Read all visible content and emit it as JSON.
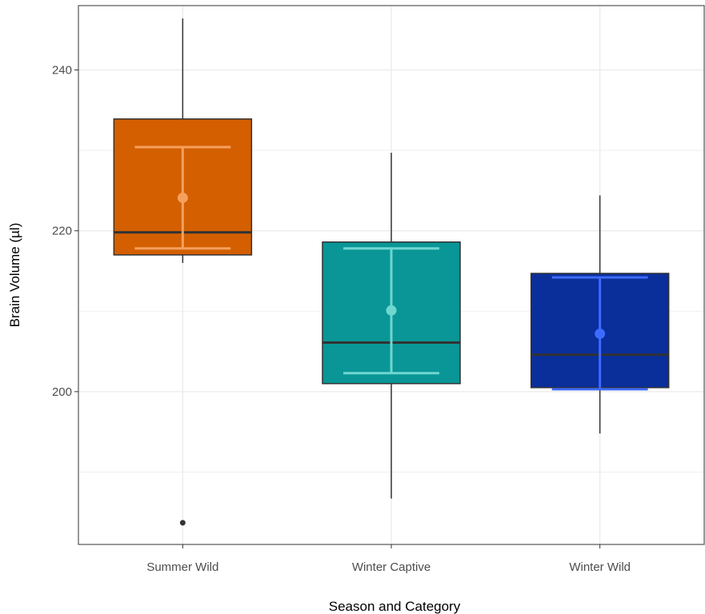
{
  "chart_data": {
    "type": "boxplot",
    "xlabel": "Season and Category",
    "ylabel": "Brain Volume (µl)",
    "ylim": [
      181,
      248
    ],
    "y_ticks": [
      200,
      220,
      240
    ],
    "y_minor_ticks": [
      190,
      210,
      230
    ],
    "grid": true,
    "categories": [
      "Summer Wild",
      "Winter Captive",
      "Winter Wild"
    ],
    "boxes": [
      {
        "category": "Summer Wild",
        "whisker_low": 216,
        "q1": 217,
        "median": 219.8,
        "q3": 233.9,
        "whisker_high": 246.4,
        "outliers": [
          183.7
        ],
        "mean": 224.1,
        "ci_low": 217.8,
        "ci_high": 230.4,
        "fill": "#D35F00",
        "accent": "#F5A05C"
      },
      {
        "category": "Winter Captive",
        "whisker_low": 186.7,
        "q1": 201,
        "median": 206.1,
        "q3": 218.6,
        "whisker_high": 229.7,
        "outliers": [],
        "mean": 210.1,
        "ci_low": 202.3,
        "ci_high": 217.8,
        "fill": "#0A9696",
        "accent": "#6FD6D0"
      },
      {
        "category": "Winter Wild",
        "whisker_low": 194.8,
        "q1": 200.5,
        "median": 204.6,
        "q3": 214.7,
        "whisker_high": 224.4,
        "outliers": [],
        "mean": 207.2,
        "ci_low": 200.3,
        "ci_high": 214.2,
        "fill": "#0A2E9A",
        "accent": "#3D6BFF"
      }
    ]
  }
}
